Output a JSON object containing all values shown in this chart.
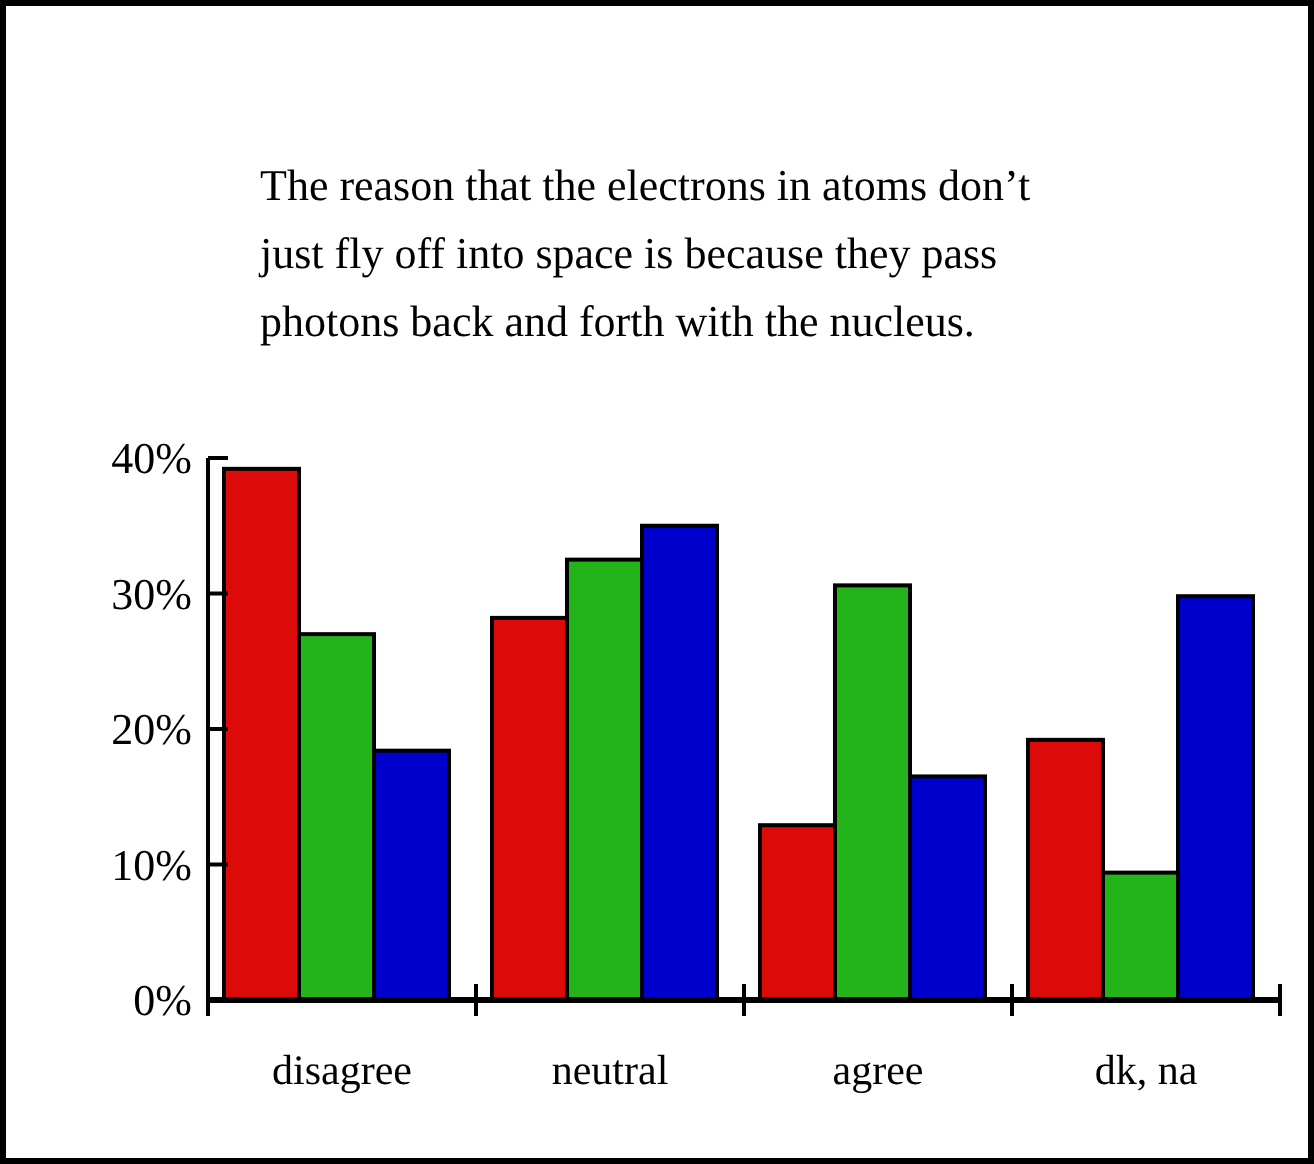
{
  "chart_data": {
    "type": "bar",
    "title": "The reason that the electrons in atoms don’t just fly off into space is because they pass photons back and forth with the nucleus.",
    "categories": [
      "disagree",
      "neutral",
      "agree",
      "dk, na"
    ],
    "series": [
      {
        "color": "#dd0a0a",
        "values": [
          39.2,
          28.2,
          12.9,
          19.2
        ]
      },
      {
        "color": "#22b419",
        "values": [
          27.0,
          32.5,
          30.6,
          9.4
        ]
      },
      {
        "color": "#0000cc",
        "values": [
          18.4,
          35.0,
          16.5,
          29.8
        ]
      }
    ],
    "ylim": [
      0,
      40
    ],
    "yticks": [
      {
        "value": 0,
        "label": "0%"
      },
      {
        "value": 10,
        "label": "10%"
      },
      {
        "value": 20,
        "label": "20%"
      },
      {
        "value": 30,
        "label": "30%"
      },
      {
        "value": 40,
        "label": "40%"
      }
    ],
    "grid": false
  }
}
